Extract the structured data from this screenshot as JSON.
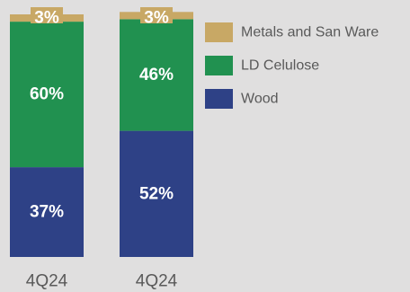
{
  "chart_data": {
    "type": "bar",
    "stacked": true,
    "percent_stacked": true,
    "categories": [
      "4Q24",
      "4Q24"
    ],
    "series": [
      {
        "name": "Wood",
        "values": [
          37,
          52
        ],
        "labels": [
          "37%",
          "52%"
        ],
        "color": "#2e4186"
      },
      {
        "name": "LD Celulose",
        "values": [
          60,
          46
        ],
        "labels": [
          "60%",
          "46%"
        ],
        "color": "#219150"
      },
      {
        "name": "Metals and San Ware",
        "values": [
          3,
          3
        ],
        "labels": [
          "3%",
          "3%"
        ],
        "color": "#c8a865"
      }
    ],
    "legend": {
      "placement": "right",
      "order": [
        "Metals and San Ware",
        "LD Celulose",
        "Wood"
      ]
    },
    "ylim": [
      0,
      100
    ],
    "grid": false,
    "colors": {
      "background": "#e0dfdf",
      "bar_label": "#ffffff",
      "tick_label": "#595959",
      "legend_text": "#595959"
    }
  }
}
